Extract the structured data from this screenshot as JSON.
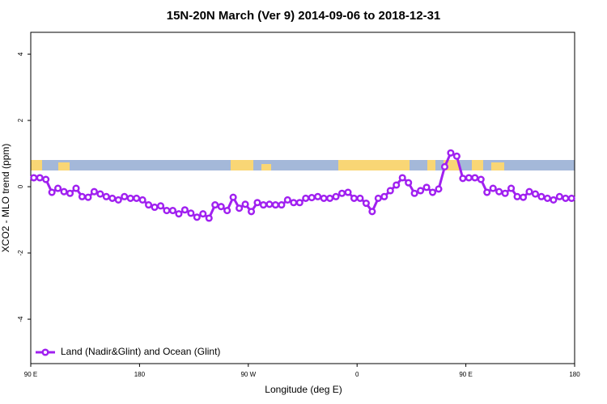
{
  "chart_data": {
    "type": "line",
    "title": "15N-20N March (Ver 9)   2014-09-06 to 2018-12-31",
    "x_label": "Longitude (deg E)",
    "y_label": "XCO2 - MLO trend (ppm)",
    "xlim": [
      90,
      540
    ],
    "xticks": [
      {
        "value": 90,
        "label": "90 E"
      },
      180,
      {
        "value": 270,
        "label": "90 W"
      },
      {
        "value": 360,
        "label": "0"
      },
      {
        "value": 450,
        "label": "90 E"
      },
      {
        "value": 540,
        "label": "180"
      }
    ],
    "ylim": [
      -5.34,
      4.66
    ],
    "yticks": [
      4,
      2,
      0,
      -2,
      -4
    ],
    "legend": "bottom-left",
    "series": [
      {
        "name": "Land (Nadir&Glint) and Ocean (Glint)",
        "color": "#a020f0",
        "x": [
          92.5,
          97.5,
          102.5,
          107.5,
          112.5,
          117.5,
          122.5,
          127.5,
          132.5,
          137.5,
          142.5,
          147.5,
          152.5,
          157.5,
          162.5,
          167.5,
          172.5,
          177.5,
          182.5,
          187.5,
          192.5,
          197.5,
          202.5,
          207.5,
          212.5,
          217.5,
          222.5,
          227.5,
          232.5,
          237.5,
          242.5,
          247.5,
          252.5,
          257.5,
          262.5,
          267.5,
          272.5,
          277.5,
          282.5,
          287.5,
          292.5,
          297.5,
          302.5,
          307.5,
          312.5,
          317.5,
          322.5,
          327.5,
          332.5,
          337.5,
          342.5,
          347.5,
          352.5,
          357.5,
          362.5,
          367.5,
          372.5,
          377.5,
          382.5,
          387.5,
          392.5,
          397.5,
          402.5,
          407.5,
          412.5,
          417.5,
          422.5,
          427.5,
          432.5,
          437.5,
          442.5,
          447.5,
          452.5,
          457.5,
          462.5,
          467.5,
          472.5,
          477.5,
          482.5,
          487.5,
          492.5,
          497.5,
          502.5,
          507.5,
          512.5,
          517.5,
          522.5,
          527.5,
          532.5,
          537.5
        ],
        "values": [
          0.27,
          0.27,
          0.22,
          -0.17,
          -0.05,
          -0.15,
          -0.2,
          -0.05,
          -0.3,
          -0.32,
          -0.15,
          -0.22,
          -0.3,
          -0.35,
          -0.4,
          -0.3,
          -0.35,
          -0.35,
          -0.4,
          -0.55,
          -0.62,
          -0.58,
          -0.72,
          -0.72,
          -0.82,
          -0.7,
          -0.8,
          -0.92,
          -0.82,
          -0.95,
          -0.55,
          -0.6,
          -0.72,
          -0.32,
          -0.65,
          -0.53,
          -0.75,
          -0.48,
          -0.55,
          -0.53,
          -0.55,
          -0.55,
          -0.4,
          -0.48,
          -0.48,
          -0.35,
          -0.33,
          -0.3,
          -0.35,
          -0.35,
          -0.3,
          -0.2,
          -0.17,
          -0.35,
          -0.35,
          -0.5,
          -0.75,
          -0.35,
          -0.3,
          -0.12,
          0.05,
          0.27,
          0.12,
          -0.2,
          -0.12,
          -0.02,
          -0.17,
          -0.07,
          0.6,
          1.02,
          0.92,
          0.25,
          0.27,
          0.27,
          0.22,
          -0.17,
          -0.05,
          -0.15,
          -0.2,
          -0.05,
          -0.3,
          -0.32,
          -0.15,
          -0.22,
          -0.3,
          -0.35,
          -0.4,
          -0.3,
          -0.35,
          -0.35
        ]
      }
    ]
  }
}
